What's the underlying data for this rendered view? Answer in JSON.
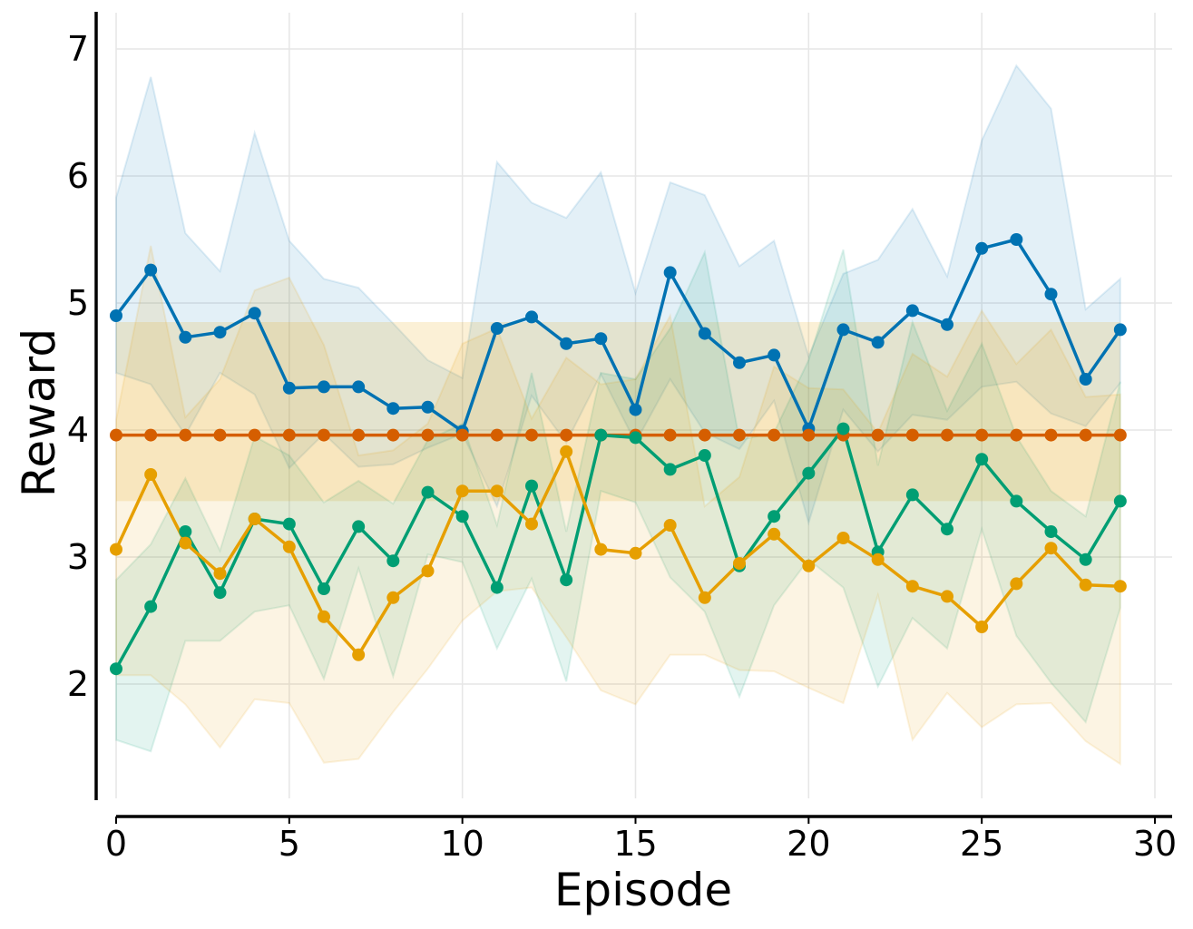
{
  "chart_data": {
    "type": "line",
    "title": "",
    "xlabel": "Episode",
    "ylabel": "Reward",
    "xlim": [
      0,
      30
    ],
    "ylim": [
      1.1,
      7.15
    ],
    "xticks": [
      0,
      5,
      10,
      15,
      20,
      25,
      30
    ],
    "yticks": [
      2,
      3,
      4,
      5,
      6,
      7
    ],
    "grid": true,
    "x": [
      0,
      1,
      2,
      3,
      4,
      5,
      6,
      7,
      8,
      9,
      10,
      11,
      12,
      13,
      14,
      15,
      16,
      17,
      18,
      19,
      20,
      21,
      22,
      23,
      24,
      25,
      26,
      27,
      28,
      29
    ],
    "series": [
      {
        "name": "blue",
        "color": "#0072b2",
        "values": [
          4.9,
          5.26,
          4.73,
          4.77,
          4.92,
          4.33,
          4.34,
          4.34,
          4.17,
          4.18,
          3.99,
          4.8,
          4.89,
          4.68,
          4.72,
          4.16,
          5.24,
          4.76,
          4.53,
          4.59,
          4.01,
          4.79,
          4.69,
          4.94,
          4.83,
          5.43,
          5.5,
          5.07,
          4.4,
          4.79
        ],
        "upper": [
          5.83,
          6.78,
          5.55,
          5.25,
          6.34,
          5.49,
          5.19,
          5.12,
          4.84,
          4.55,
          4.41,
          6.11,
          5.79,
          5.67,
          6.03,
          5.08,
          5.95,
          5.85,
          5.29,
          5.49,
          4.58,
          5.23,
          5.34,
          5.74,
          5.21,
          6.28,
          6.87,
          6.53,
          4.95,
          5.19
        ],
        "lower": [
          4.45,
          4.36,
          3.96,
          4.45,
          4.28,
          3.7,
          3.97,
          3.71,
          3.73,
          3.86,
          3.97,
          3.4,
          4.27,
          3.9,
          4.44,
          3.9,
          4.4,
          3.98,
          3.85,
          4.23,
          3.27,
          4.16,
          3.83,
          4.12,
          4.08,
          4.34,
          4.38,
          4.13,
          4.03,
          4.37
        ]
      },
      {
        "name": "vermilion",
        "color": "#d55e00",
        "values": [
          3.96,
          3.96,
          3.96,
          3.96,
          3.96,
          3.96,
          3.96,
          3.96,
          3.96,
          3.96,
          3.96,
          3.96,
          3.96,
          3.96,
          3.96,
          3.96,
          3.96,
          3.96,
          3.96,
          3.96,
          3.96,
          3.96,
          3.96,
          3.96,
          3.96,
          3.96,
          3.96,
          3.96,
          3.96,
          3.96
        ],
        "upper": [
          4.85,
          4.85,
          4.85,
          4.85,
          4.85,
          4.85,
          4.85,
          4.85,
          4.85,
          4.85,
          4.85,
          4.85,
          4.85,
          4.85,
          4.85,
          4.85,
          4.85,
          4.85,
          4.85,
          4.85,
          4.85,
          4.85,
          4.85,
          4.85,
          4.85,
          4.85,
          4.85,
          4.85,
          4.85,
          4.85
        ],
        "lower": [
          3.44,
          3.44,
          3.44,
          3.44,
          3.44,
          3.44,
          3.44,
          3.44,
          3.44,
          3.44,
          3.44,
          3.44,
          3.44,
          3.44,
          3.44,
          3.44,
          3.44,
          3.44,
          3.44,
          3.44,
          3.44,
          3.44,
          3.44,
          3.44,
          3.44,
          3.44,
          3.44,
          3.44,
          3.44,
          3.44
        ]
      },
      {
        "name": "green",
        "color": "#009e73",
        "values": [
          2.12,
          2.61,
          3.2,
          2.72,
          3.3,
          3.26,
          2.75,
          3.24,
          2.97,
          3.51,
          3.32,
          2.76,
          3.56,
          2.82,
          3.96,
          3.94,
          3.69,
          3.8,
          2.93,
          3.32,
          3.66,
          4.01,
          3.04,
          3.49,
          3.22,
          3.77,
          3.44,
          3.2,
          2.98,
          3.44
        ]
      },
      {
        "name": "orange",
        "color": "#e69f00",
        "values": [
          3.06,
          3.65,
          3.11,
          2.87,
          3.3,
          3.08,
          2.53,
          2.23,
          2.68,
          2.89,
          3.52,
          3.52,
          3.26,
          3.83,
          3.06,
          3.03,
          3.25,
          2.68,
          2.95,
          3.18,
          2.93,
          3.15,
          2.98,
          2.77,
          2.69,
          2.45,
          2.79,
          3.07,
          2.78,
          2.77
        ]
      }
    ],
    "bands": [
      {
        "name": "green-band",
        "color": "#009e73",
        "upper": [
          2.82,
          3.1,
          3.62,
          3.05,
          3.95,
          3.8,
          3.43,
          3.6,
          3.42,
          3.92,
          4.05,
          3.25,
          4.45,
          3.2,
          4.45,
          4.4,
          4.8,
          5.4,
          3.92,
          3.98,
          4.55,
          5.42,
          3.72,
          4.85,
          4.15,
          4.68,
          3.95,
          3.52,
          3.32,
          4.38
        ],
        "lower": [
          1.56,
          1.47,
          2.34,
          2.34,
          2.57,
          2.62,
          2.04,
          2.91,
          2.06,
          3.02,
          2.96,
          2.28,
          2.83,
          2.02,
          3.52,
          3.43,
          2.84,
          2.57,
          1.9,
          2.62,
          2.98,
          2.76,
          1.98,
          2.52,
          2.28,
          3.22,
          2.38,
          2.01,
          1.7,
          2.6
        ]
      },
      {
        "name": "orange-band",
        "color": "#e69f00",
        "upper": [
          4.08,
          5.45,
          4.1,
          4.4,
          5.1,
          5.2,
          4.67,
          3.8,
          3.84,
          4.05,
          4.68,
          4.8,
          4.09,
          4.57,
          4.36,
          4.4,
          4.9,
          3.4,
          3.63,
          4.5,
          4.33,
          4.32,
          3.98,
          4.6,
          4.42,
          4.94,
          4.52,
          4.79,
          4.26,
          4.28
        ],
        "lower": [
          2.07,
          2.07,
          1.84,
          1.5,
          1.88,
          1.85,
          1.38,
          1.41,
          1.78,
          2.12,
          2.5,
          2.73,
          2.76,
          2.37,
          1.95,
          1.84,
          2.23,
          2.23,
          2.11,
          2.1,
          1.97,
          1.85,
          2.7,
          1.56,
          1.93,
          1.66,
          1.84,
          1.85,
          1.55,
          1.37
        ]
      }
    ]
  }
}
